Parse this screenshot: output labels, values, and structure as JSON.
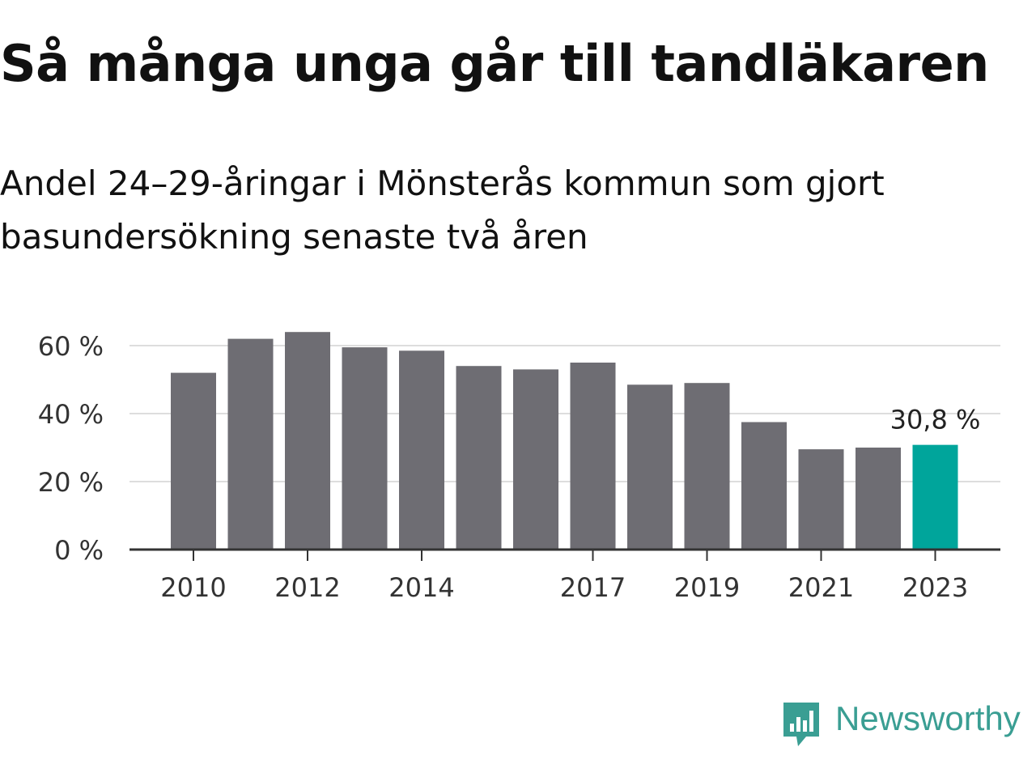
{
  "header": {
    "title": "Så många unga går till tandläkaren",
    "subtitle": "Andel 24–29-åringar i Mönsterås kommun som gjort basundersökning senaste två åren"
  },
  "chart_data": {
    "type": "bar",
    "categories": [
      "2010",
      "2011",
      "2012",
      "2013",
      "2014",
      "2015",
      "2016",
      "2017",
      "2018",
      "2019",
      "2020",
      "2021",
      "2022",
      "2023"
    ],
    "values": [
      52,
      62,
      64,
      59.5,
      58.5,
      54,
      53,
      55,
      48.5,
      49,
      37.5,
      29.5,
      30,
      30.8
    ],
    "x_tick_labels": [
      "2010",
      "2012",
      "2014",
      "2017",
      "2019",
      "2021",
      "2023"
    ],
    "y_ticks": [
      0,
      20,
      40,
      60
    ],
    "y_tick_labels": [
      "0 %",
      "20 %",
      "40 %",
      "60 %"
    ],
    "ylim": [
      0,
      66
    ],
    "highlight_index": 13,
    "highlight_label": "30,8 %",
    "colors": {
      "bar": "#6e6d73",
      "highlight": "#00a59b",
      "grid": "#dddddd",
      "axis": "#333333",
      "tick_text": "#333333"
    },
    "grid": true,
    "xlabel": "",
    "ylabel": ""
  },
  "logo": {
    "text": "Newsworthy",
    "icon": "newsworthy-chart-bubble-icon",
    "color": "#3a9e93"
  }
}
